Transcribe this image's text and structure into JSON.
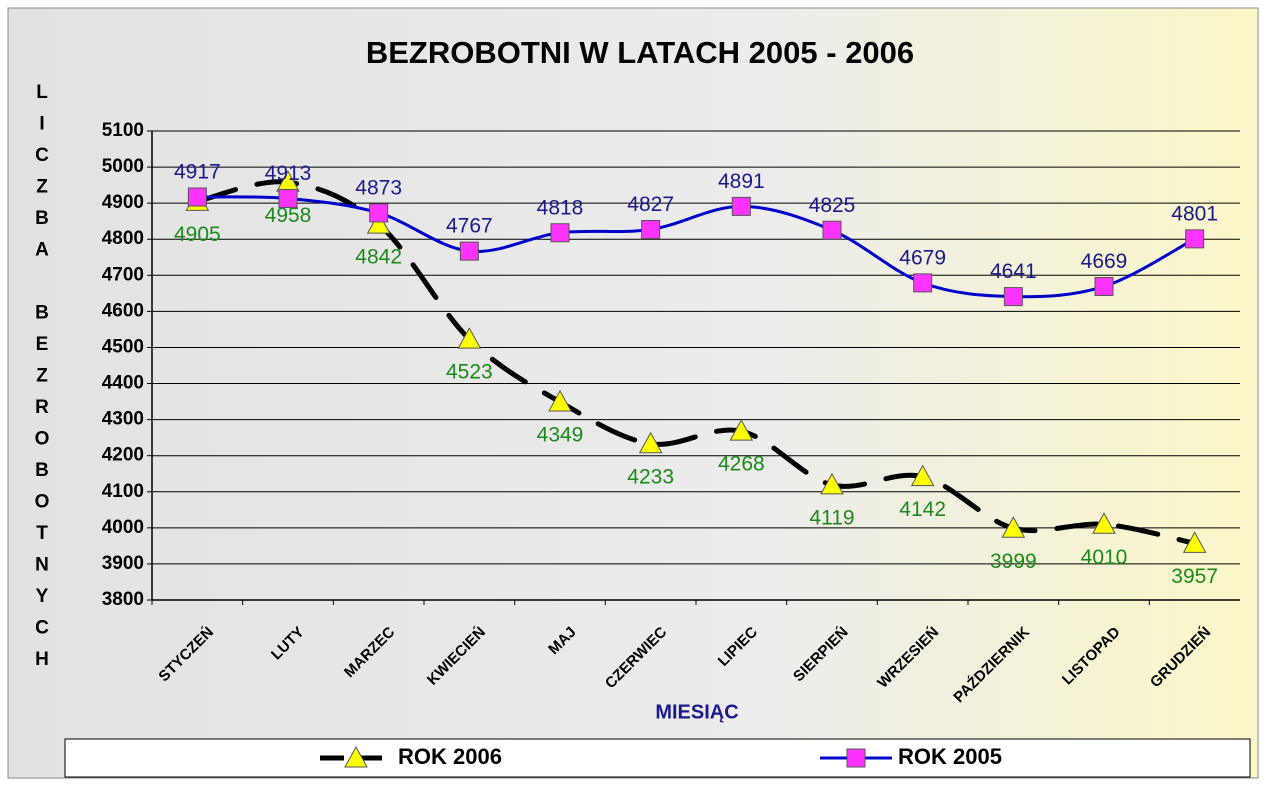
{
  "chart_data": {
    "type": "line",
    "title": "BEZROBOTNI W LATACH 2005 - 2006",
    "x_label": "MIESIĄC",
    "y_label": "LICZBA BEZROBOTNYCH",
    "categories": [
      "STYCZEŃ",
      "LUTY",
      "MARZEC",
      "KWIECIEŃ",
      "MAJ",
      "CZERWIEC",
      "LIPIEC",
      "SIERPIEŃ",
      "WRZESIEŃ",
      "PAŹDZIERNIK",
      "LISTOPAD",
      "GRUDZIEŃ"
    ],
    "series": [
      {
        "name": "ROK 2006",
        "color": "#000000",
        "marker_color": "#ffff00",
        "label_color": "#1a8a1a",
        "marker": "triangle",
        "dashed": true,
        "values": [
          4905,
          4958,
          4842,
          4523,
          4349,
          4233,
          4268,
          4119,
          4142,
          3999,
          4010,
          3957
        ]
      },
      {
        "name": "ROK 2005",
        "color": "#0000cc",
        "marker_color": "#ff33ff",
        "label_color": "#1a1a8a",
        "marker": "square",
        "dashed": false,
        "values": [
          4917,
          4913,
          4873,
          4767,
          4818,
          4827,
          4891,
          4825,
          4679,
          4641,
          4669,
          4801
        ]
      }
    ],
    "ylim": [
      3800,
      5100
    ],
    "yticks": [
      3800,
      3900,
      4000,
      4100,
      4200,
      4300,
      4400,
      4500,
      4600,
      4700,
      4800,
      4900,
      5000,
      5100
    ],
    "grid": true,
    "legend": "bottom"
  }
}
